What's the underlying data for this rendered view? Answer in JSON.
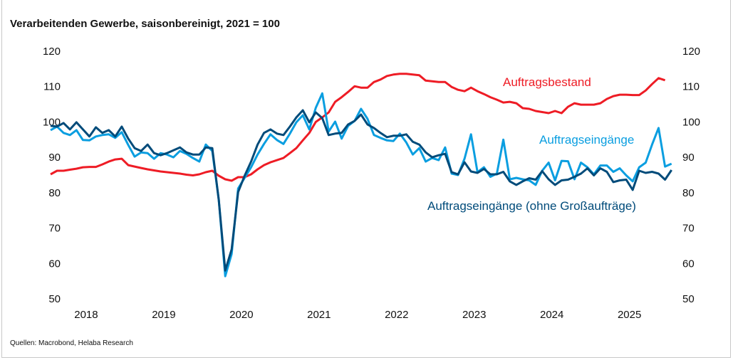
{
  "title": "Verarbeitenden Gewerbe, saisonbereinigt, 2021 = 100",
  "source": "Quellen: Macrobond, Helaba Research",
  "chart_data": {
    "type": "line",
    "title": "Verarbeitenden Gewerbe, saisonbereinigt, 2021 = 100",
    "x_start": "2018-01",
    "x_frequency": "monthly",
    "x_tick_labels": [
      "2018",
      "2019",
      "2020",
      "2021",
      "2022",
      "2023",
      "2024",
      "2025"
    ],
    "y_ticks": [
      120,
      110,
      100,
      90,
      80,
      70,
      60,
      50
    ],
    "ylim": [
      50,
      120
    ],
    "y_axis_both_sides": true,
    "grid": false,
    "legend": "inline labels",
    "series": [
      {
        "name": "Auftragsbestand",
        "color": "#ee1c25",
        "values": [
          85.2,
          86.2,
          86.2,
          86.5,
          86.8,
          87.2,
          87.3,
          87.3,
          88.0,
          88.8,
          89.4,
          89.6,
          87.8,
          87.4,
          87.0,
          86.6,
          86.3,
          86.0,
          85.8,
          85.6,
          85.4,
          85.1,
          84.9,
          85.2,
          85.8,
          86.2,
          84.8,
          83.8,
          83.4,
          84.4,
          84.4,
          85.2,
          86.6,
          87.8,
          88.6,
          89.2,
          89.8,
          91.2,
          92.6,
          94.8,
          96.9,
          100.0,
          101.3,
          102.7,
          105.7,
          107.0,
          108.5,
          110.1,
          109.7,
          109.7,
          111.3,
          112.0,
          113.0,
          113.4,
          113.6,
          113.6,
          113.4,
          113.2,
          111.7,
          111.5,
          111.3,
          111.3,
          109.9,
          109.1,
          108.7,
          109.7,
          108.7,
          107.9,
          107.0,
          106.3,
          105.5,
          105.7,
          105.3,
          103.9,
          103.7,
          103.1,
          102.8,
          102.5,
          103.1,
          102.5,
          104.3,
          105.3,
          104.9,
          104.9,
          104.9,
          105.3,
          106.5,
          107.3,
          107.7,
          107.7,
          107.6,
          107.6,
          108.9,
          110.7,
          112.4,
          111.8
        ]
      },
      {
        "name": "Auftragseingänge",
        "color": "#0a9ee0",
        "values": [
          97.7,
          98.7,
          96.9,
          96.3,
          97.7,
          94.9,
          94.8,
          95.9,
          96.3,
          96.5,
          95.5,
          97.1,
          93.5,
          90.2,
          91.4,
          91.2,
          89.6,
          91.2,
          90.8,
          90.0,
          91.8,
          91.0,
          89.8,
          88.8,
          93.6,
          91.8,
          78.0,
          56.4,
          62.7,
          81.2,
          84.2,
          87.2,
          90.8,
          93.8,
          96.5,
          94.9,
          93.8,
          96.7,
          99.9,
          101.9,
          97.9,
          104.0,
          108.1,
          97.3,
          100.1,
          95.3,
          98.9,
          100.3,
          103.7,
          100.9,
          96.3,
          95.5,
          94.8,
          94.6,
          96.7,
          94.2,
          90.8,
          92.6,
          88.8,
          89.8,
          89.2,
          92.8,
          85.4,
          85.0,
          89.6,
          96.5,
          85.8,
          87.2,
          84.5,
          85.4,
          95.0,
          83.8,
          84.2,
          83.8,
          83.5,
          82.2,
          86.2,
          88.5,
          83.5,
          89.0,
          88.9,
          83.8,
          88.5,
          87.2,
          85.2,
          87.7,
          87.7,
          85.9,
          86.9,
          84.9,
          83.2,
          87.2,
          88.5,
          93.6,
          98.3,
          87.4,
          88.2
        ]
      },
      {
        "name": "Auftragseingänge (ohne Großaufträge)",
        "color": "#004b7a",
        "values": [
          98.9,
          98.7,
          99.7,
          97.9,
          99.9,
          97.9,
          95.9,
          98.5,
          96.9,
          97.7,
          95.9,
          98.7,
          95.3,
          92.6,
          91.8,
          93.6,
          91.2,
          90.6,
          91.2,
          92.0,
          92.8,
          91.4,
          90.8,
          90.8,
          92.8,
          92.6,
          78.0,
          58.0,
          64.0,
          80.2,
          84.8,
          88.8,
          93.6,
          96.9,
          97.9,
          96.7,
          96.3,
          98.7,
          101.3,
          103.3,
          99.9,
          102.7,
          101.1,
          96.3,
          96.7,
          96.9,
          99.3,
          100.3,
          102.1,
          99.3,
          98.3,
          96.9,
          95.7,
          96.1,
          96.1,
          96.5,
          94.4,
          93.6,
          91.4,
          90.0,
          90.6,
          91.0,
          85.8,
          85.2,
          88.6,
          86.0,
          85.6,
          86.7,
          85.2,
          85.2,
          85.9,
          83.2,
          82.2,
          83.2,
          84.1,
          83.7,
          86.1,
          83.8,
          82.2,
          83.5,
          83.7,
          84.5,
          85.4,
          86.9,
          84.9,
          86.9,
          85.9,
          83.0,
          83.5,
          83.7,
          80.8,
          86.2,
          85.6,
          85.9,
          85.4,
          83.7,
          86.4
        ]
      }
    ]
  }
}
